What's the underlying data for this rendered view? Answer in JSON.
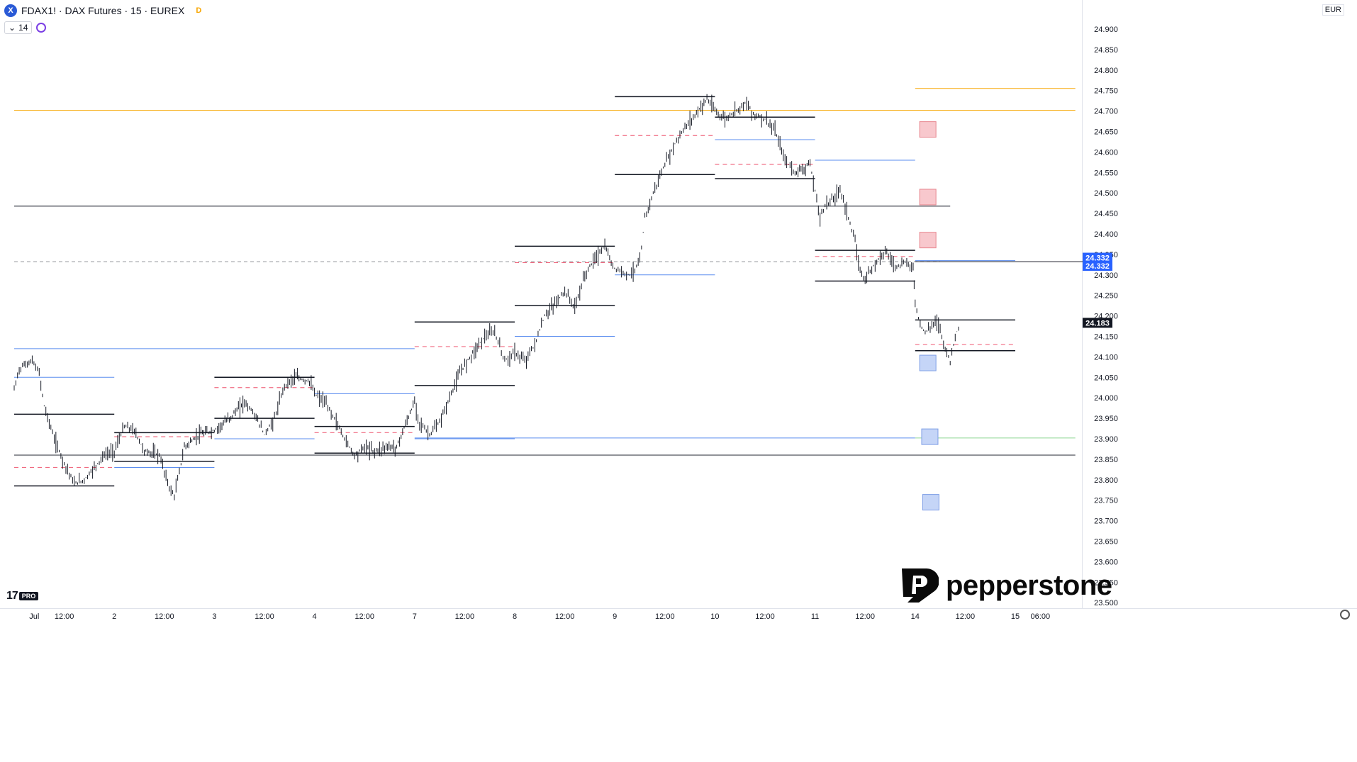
{
  "header": {
    "symbol_icon": "X",
    "title": "FDAX1! · DAX Futures · 15 · EUREX",
    "delayed_badge": "D",
    "indicator_label": "14",
    "currency": "EUR"
  },
  "branding": {
    "tv_badge": "PRO",
    "tv_mark": "17",
    "pepperstone": "pepperstone"
  },
  "colors": {
    "candle": "#131722",
    "orange_level": "#f7a600",
    "gray_level": "#8d8f95",
    "blue_level": "#5b8def",
    "red_dash": "#f06a80",
    "green_level": "#8fd694",
    "price_badge_blue": "#2962ff",
    "price_badge_black": "#131722"
  },
  "chart_data": {
    "type": "candlestick",
    "title": "FDAX1! · DAX Futures · 15 · EUREX",
    "currency": "EUR",
    "interval": "15",
    "ylim": [
      23500,
      24950
    ],
    "y_ticks": [
      "24.900",
      "24.850",
      "24.800",
      "24.750",
      "24.700",
      "24.650",
      "24.600",
      "24.550",
      "24.500",
      "24.450",
      "24.400",
      "24.350",
      "24.300",
      "24.250",
      "24.200",
      "24.150",
      "24.100",
      "24.050",
      "24.000",
      "23.950",
      "23.900",
      "23.850",
      "23.800",
      "23.750",
      "23.700",
      "23.650",
      "23.600",
      "23.550",
      "23.500"
    ],
    "x_ticks": [
      {
        "label": "Jul",
        "x": 0.2
      },
      {
        "label": "12:00",
        "x": 0.5
      },
      {
        "label": "2",
        "x": 1
      },
      {
        "label": "12:00",
        "x": 1.5
      },
      {
        "label": "3",
        "x": 2
      },
      {
        "label": "12:00",
        "x": 2.5
      },
      {
        "label": "4",
        "x": 3
      },
      {
        "label": "12:00",
        "x": 3.5
      },
      {
        "label": "7",
        "x": 4
      },
      {
        "label": "12:00",
        "x": 4.5
      },
      {
        "label": "8",
        "x": 5
      },
      {
        "label": "12:00",
        "x": 5.5
      },
      {
        "label": "9",
        "x": 6
      },
      {
        "label": "12:00",
        "x": 6.5
      },
      {
        "label": "10",
        "x": 7
      },
      {
        "label": "12:00",
        "x": 7.5
      },
      {
        "label": "11",
        "x": 8
      },
      {
        "label": "12:00",
        "x": 8.5
      },
      {
        "label": "14",
        "x": 9
      },
      {
        "label": "12:00",
        "x": 9.5
      },
      {
        "label": "15",
        "x": 10
      },
      {
        "label": "06:00",
        "x": 10.25
      }
    ],
    "price_path": [
      [
        0.0,
        24020
      ],
      [
        0.05,
        24070
      ],
      [
        0.1,
        24080
      ],
      [
        0.18,
        24090
      ],
      [
        0.25,
        24060
      ],
      [
        0.3,
        23980
      ],
      [
        0.4,
        23900
      ],
      [
        0.5,
        23840
      ],
      [
        0.6,
        23790
      ],
      [
        0.7,
        23800
      ],
      [
        0.8,
        23830
      ],
      [
        0.9,
        23860
      ],
      [
        1.0,
        23870
      ],
      [
        1.1,
        23930
      ],
      [
        1.2,
        23920
      ],
      [
        1.3,
        23870
      ],
      [
        1.45,
        23860
      ],
      [
        1.55,
        23780
      ],
      [
        1.6,
        23760
      ],
      [
        1.7,
        23880
      ],
      [
        1.85,
        23910
      ],
      [
        2.0,
        23920
      ],
      [
        2.15,
        23950
      ],
      [
        2.3,
        23990
      ],
      [
        2.4,
        23960
      ],
      [
        2.5,
        23910
      ],
      [
        2.6,
        23950
      ],
      [
        2.7,
        24030
      ],
      [
        2.8,
        24050
      ],
      [
        2.95,
        24040
      ],
      [
        3.0,
        24010
      ],
      [
        3.1,
        23990
      ],
      [
        3.2,
        23950
      ],
      [
        3.3,
        23900
      ],
      [
        3.4,
        23860
      ],
      [
        3.5,
        23880
      ],
      [
        3.6,
        23870
      ],
      [
        3.7,
        23880
      ],
      [
        3.82,
        23880
      ],
      [
        4.0,
        23990
      ],
      [
        4.05,
        23940
      ],
      [
        4.15,
        23910
      ],
      [
        4.25,
        23940
      ],
      [
        4.35,
        24000
      ],
      [
        4.45,
        24060
      ],
      [
        4.55,
        24100
      ],
      [
        4.7,
        24150
      ],
      [
        4.8,
        24160
      ],
      [
        4.9,
        24090
      ],
      [
        5.0,
        24110
      ],
      [
        5.1,
        24090
      ],
      [
        5.2,
        24130
      ],
      [
        5.3,
        24200
      ],
      [
        5.4,
        24230
      ],
      [
        5.5,
        24260
      ],
      [
        5.6,
        24220
      ],
      [
        5.7,
        24300
      ],
      [
        5.8,
        24340
      ],
      [
        5.9,
        24370
      ],
      [
        5.98,
        24320
      ],
      [
        6.05,
        24310
      ],
      [
        6.15,
        24300
      ],
      [
        6.25,
        24330
      ],
      [
        6.3,
        24440
      ],
      [
        6.4,
        24510
      ],
      [
        6.5,
        24570
      ],
      [
        6.6,
        24620
      ],
      [
        6.7,
        24660
      ],
      [
        6.8,
        24690
      ],
      [
        6.92,
        24730
      ],
      [
        7.0,
        24700
      ],
      [
        7.1,
        24680
      ],
      [
        7.2,
        24700
      ],
      [
        7.3,
        24720
      ],
      [
        7.4,
        24690
      ],
      [
        7.5,
        24680
      ],
      [
        7.6,
        24650
      ],
      [
        7.7,
        24580
      ],
      [
        7.8,
        24550
      ],
      [
        7.95,
        24570
      ],
      [
        8.05,
        24440
      ],
      [
        8.1,
        24470
      ],
      [
        8.2,
        24490
      ],
      [
        8.25,
        24510
      ],
      [
        8.3,
        24470
      ],
      [
        8.4,
        24380
      ],
      [
        8.45,
        24310
      ],
      [
        8.5,
        24290
      ],
      [
        8.6,
        24330
      ],
      [
        8.7,
        24360
      ],
      [
        8.8,
        24320
      ],
      [
        8.9,
        24330
      ],
      [
        8.98,
        24320
      ],
      [
        9.0,
        24230
      ],
      [
        9.05,
        24180
      ],
      [
        9.1,
        24160
      ],
      [
        9.15,
        24170
      ],
      [
        9.2,
        24190
      ],
      [
        9.25,
        24170
      ],
      [
        9.3,
        24120
      ],
      [
        9.35,
        24090
      ],
      [
        9.4,
        24150
      ],
      [
        9.45,
        24183
      ]
    ],
    "levels": [
      {
        "kind": "orange",
        "price": 24702,
        "from": 0.0,
        "to": 10.6
      },
      {
        "kind": "orange",
        "price": 24755,
        "from": 9.0,
        "to": 10.6
      },
      {
        "kind": "gray_thick",
        "price": 24468,
        "from": 0.0,
        "to": 9.35
      },
      {
        "kind": "gray_dash",
        "price": 24332,
        "from": 0.0,
        "to": 9.25
      },
      {
        "kind": "gray_thick",
        "price": 23860,
        "from": 0.0,
        "to": 10.6
      },
      {
        "kind": "green",
        "price": 23902,
        "from": 9.0,
        "to": 10.6
      },
      {
        "kind": "black",
        "price": 24332,
        "from": 9.0,
        "to": 10.85
      },
      {
        "kind": "blue",
        "price": 24120,
        "from": 0.0,
        "to": 4.0
      },
      {
        "kind": "blue",
        "price": 23902,
        "from": 4.0,
        "to": 9.0
      }
    ],
    "daily_ranges": [
      {
        "day": 0,
        "high": 23960,
        "low": 23785,
        "mid": 23830,
        "vwap": 24050
      },
      {
        "day": 1,
        "high": 23915,
        "low": 23845,
        "mid": 23905,
        "vwap": 23830
      },
      {
        "day": 2,
        "high": 24050,
        "low": 23950,
        "mid": 24025,
        "vwap": 23900
      },
      {
        "day": 3,
        "high": 23930,
        "low": 23865,
        "mid": 23915,
        "vwap": 24010
      },
      {
        "day": 4,
        "high": 24185,
        "low": 24030,
        "mid": 24125,
        "vwap": 23900
      },
      {
        "day": 5,
        "high": 24370,
        "low": 24225,
        "mid": 24330,
        "vwap": 24150
      },
      {
        "day": 6,
        "high": 24735,
        "low": 24545,
        "mid": 24640,
        "vwap": 24300
      },
      {
        "day": 7,
        "high": 24685,
        "low": 24535,
        "mid": 24570,
        "vwap": 24630
      },
      {
        "day": 8,
        "high": 24360,
        "low": 24285,
        "mid": 24345,
        "vwap": 24580
      },
      {
        "day": 9,
        "high": 24190,
        "low": 24115,
        "mid": 24130,
        "vwap": 24335
      }
    ],
    "zones": [
      {
        "color": "red",
        "price": 24655,
        "x": 9.13
      },
      {
        "color": "red",
        "price": 24490,
        "x": 9.13
      },
      {
        "color": "red",
        "price": 24385,
        "x": 9.13
      },
      {
        "color": "blue",
        "price": 24085,
        "x": 9.13
      },
      {
        "color": "blue",
        "price": 23905,
        "x": 9.15
      },
      {
        "color": "blue",
        "price": 23745,
        "x": 9.16
      }
    ],
    "price_labels": [
      {
        "text": "24.332",
        "price": 24342,
        "bg": "#2962ff"
      },
      {
        "text": "24.332",
        "price": 24322,
        "bg": "#2962ff"
      },
      {
        "text": "24.183",
        "price": 24183,
        "bg": "#131722"
      }
    ]
  }
}
